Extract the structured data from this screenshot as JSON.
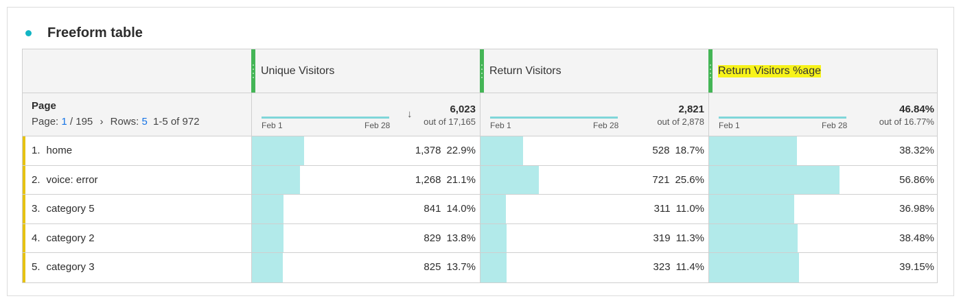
{
  "panel": {
    "title": "Freeform table"
  },
  "columns": [
    {
      "label": "Unique Visitors",
      "highlighted": false,
      "total": "6,023",
      "out_of": "out of 17,165",
      "sorted": true
    },
    {
      "label": "Return Visitors",
      "highlighted": false,
      "total": "2,821",
      "out_of": "out of 2,878",
      "sorted": false
    },
    {
      "label": "Return Visitors %age",
      "highlighted": true,
      "total": "46.84%",
      "out_of": "out of 16.77%",
      "sorted": false
    }
  ],
  "sparkline": {
    "start": "Feb 1",
    "end": "Feb 28"
  },
  "dimension": {
    "label": "Page",
    "page_label": "Page:",
    "page": "1",
    "page_total": "/ 195",
    "next": "›",
    "rows_label": "Rows:",
    "rows": "5",
    "range": "1-5 of 972"
  },
  "rows": [
    {
      "num": "1.",
      "name": "home",
      "cells": [
        {
          "v": "1,378",
          "p": "22.9%",
          "f": 22.9
        },
        {
          "v": "528",
          "p": "18.7%",
          "f": 18.7
        },
        {
          "v": "38.32%",
          "p": "",
          "f": 38.32
        }
      ]
    },
    {
      "num": "2.",
      "name": "voice: error",
      "cells": [
        {
          "v": "1,268",
          "p": "21.1%",
          "f": 21.1
        },
        {
          "v": "721",
          "p": "25.6%",
          "f": 25.6
        },
        {
          "v": "56.86%",
          "p": "",
          "f": 56.86
        }
      ]
    },
    {
      "num": "3.",
      "name": "category 5",
      "cells": [
        {
          "v": "841",
          "p": "14.0%",
          "f": 14.0
        },
        {
          "v": "311",
          "p": "11.0%",
          "f": 11.0
        },
        {
          "v": "36.98%",
          "p": "",
          "f": 36.98
        }
      ]
    },
    {
      "num": "4.",
      "name": "category 2",
      "cells": [
        {
          "v": "829",
          "p": "13.8%",
          "f": 13.8
        },
        {
          "v": "319",
          "p": "11.3%",
          "f": 11.3
        },
        {
          "v": "38.48%",
          "p": "",
          "f": 38.48
        }
      ]
    },
    {
      "num": "5.",
      "name": "category 3",
      "cells": [
        {
          "v": "825",
          "p": "13.7%",
          "f": 13.7
        },
        {
          "v": "323",
          "p": "11.4%",
          "f": 11.4
        },
        {
          "v": "39.15%",
          "p": "",
          "f": 39.15
        }
      ]
    }
  ]
}
